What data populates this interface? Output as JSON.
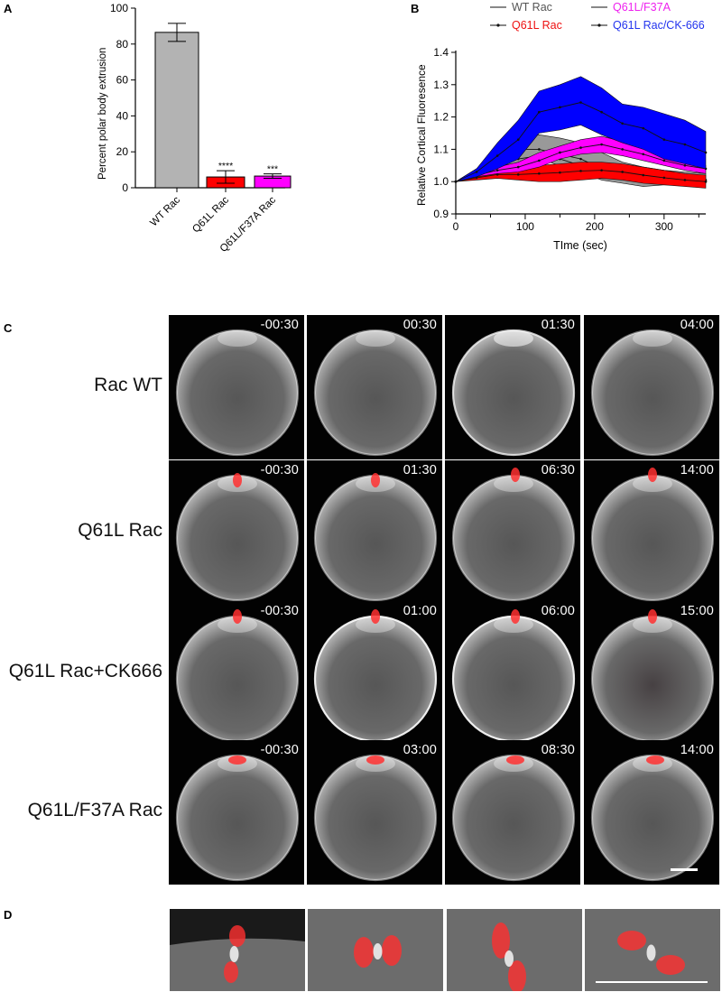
{
  "panel_letters": {
    "a": "A",
    "b": "B",
    "c": "C",
    "d": "D"
  },
  "chart_data": [
    {
      "type": "bar",
      "panel": "A",
      "ylabel": "Percent polar body extrusion",
      "xlabel": "",
      "ylim": [
        0,
        100
      ],
      "yticks": [
        "0",
        "20",
        "40",
        "60",
        "80",
        "100"
      ],
      "categories": [
        "WT Rac",
        "Q61L Rac",
        "Q61L/F37A Rac"
      ],
      "values": [
        86.5,
        6,
        6.5
      ],
      "errors": [
        5,
        3.5,
        1.2
      ],
      "bar_colors": [
        "#b3b3b3",
        "#ff0000",
        "#ff00ff"
      ],
      "significance": [
        "",
        "****",
        "***"
      ]
    },
    {
      "type": "line",
      "panel": "B",
      "ylabel": "Relative Cortical Fluoresence",
      "xlabel": "TIme (sec)",
      "xlim": [
        0,
        360
      ],
      "ylim": [
        0.9,
        1.4
      ],
      "xticks": [
        "0",
        "100",
        "200",
        "300"
      ],
      "yticks": [
        "0.9",
        "1.0",
        "1.1",
        "1.2",
        "1.3",
        "1.4"
      ],
      "x": [
        0,
        30,
        60,
        90,
        120,
        150,
        180,
        210,
        240,
        270,
        300,
        330,
        360
      ],
      "series": [
        {
          "name": "WT Rac",
          "color": "#999999",
          "legend_color": "#555555",
          "upper": [
            1.0,
            1.04,
            1.1,
            1.13,
            1.145,
            1.135,
            1.12,
            1.09,
            1.06,
            1.045,
            1.035,
            1.03,
            1.025
          ],
          "lower": [
            1.0,
            1.02,
            1.04,
            1.06,
            1.07,
            1.05,
            1.03,
            1.005,
            0.995,
            0.985,
            0.99,
            0.99,
            0.995
          ],
          "lines": [
            [
              1.0,
              1.03,
              1.07,
              1.1,
              1.1,
              1.085,
              1.07,
              1.04,
              1.02,
              1.015,
              1.02,
              1.015,
              1.0
            ],
            [
              1.0,
              1.025,
              1.05,
              1.07,
              1.08,
              1.07,
              1.05,
              1.025,
              1.01,
              1.0,
              1.0,
              1.005,
              1.005
            ]
          ]
        },
        {
          "name": "Q61L Rac",
          "color": "#ff0000",
          "legend_color": "#ee1111",
          "upper": [
            1.0,
            1.02,
            1.035,
            1.045,
            1.05,
            1.055,
            1.06,
            1.06,
            1.055,
            1.045,
            1.035,
            1.025,
            1.02
          ],
          "lower": [
            1.0,
            1.005,
            1.01,
            1.005,
            1.0,
            1.0,
            1.005,
            1.01,
            1.005,
            0.995,
            0.99,
            0.985,
            0.98
          ],
          "lines": [
            [
              1.0,
              1.012,
              1.022,
              1.022,
              1.025,
              1.028,
              1.033,
              1.035,
              1.03,
              1.02,
              1.012,
              1.005,
              1.0
            ]
          ]
        },
        {
          "name": "Q61L/F37A",
          "color": "#ff00ff",
          "legend_color": "#ee22ee",
          "upper": [
            1.0,
            1.025,
            1.045,
            1.06,
            1.09,
            1.11,
            1.13,
            1.14,
            1.125,
            1.1,
            1.075,
            1.06,
            1.05
          ],
          "lower": [
            1.0,
            1.015,
            1.025,
            1.03,
            1.045,
            1.07,
            1.085,
            1.09,
            1.08,
            1.065,
            1.05,
            1.035,
            1.025
          ],
          "lines": [
            [
              1.0,
              1.02,
              1.035,
              1.045,
              1.065,
              1.09,
              1.105,
              1.115,
              1.1,
              1.085,
              1.065,
              1.05,
              1.04
            ]
          ]
        },
        {
          "name": "Q61L Rac/CK-666",
          "color": "#0000ff",
          "legend_color": "#2233ee",
          "upper": [
            1.0,
            1.04,
            1.12,
            1.19,
            1.28,
            1.3,
            1.325,
            1.29,
            1.24,
            1.23,
            1.21,
            1.19,
            1.155
          ],
          "lower": [
            1.0,
            1.015,
            1.04,
            1.07,
            1.15,
            1.16,
            1.175,
            1.145,
            1.12,
            1.1,
            1.07,
            1.055,
            1.04
          ],
          "lines": [
            [
              1.0,
              1.03,
              1.08,
              1.13,
              1.215,
              1.23,
              1.245,
              1.215,
              1.18,
              1.165,
              1.13,
              1.115,
              1.09
            ]
          ]
        }
      ]
    }
  ],
  "panel_c": {
    "rows": [
      {
        "label": "Rac WT",
        "times": [
          "-00:30",
          "00:30",
          "01:30",
          "04:00"
        ]
      },
      {
        "label": "Q61L Rac",
        "times": [
          "-00:30",
          "01:30",
          "06:30",
          "14:00"
        ]
      },
      {
        "label": "Q61L Rac+CK666",
        "times": [
          "-00:30",
          "01:00",
          "06:00",
          "15:00"
        ]
      },
      {
        "label": "Q61L/F37A Rac",
        "times": [
          "-00:30",
          "03:00",
          "08:30",
          "14:00"
        ]
      }
    ]
  },
  "colors": {
    "chromosome_red": "#ff3030",
    "cortex_white": "#ffffff",
    "background": "#000000"
  }
}
